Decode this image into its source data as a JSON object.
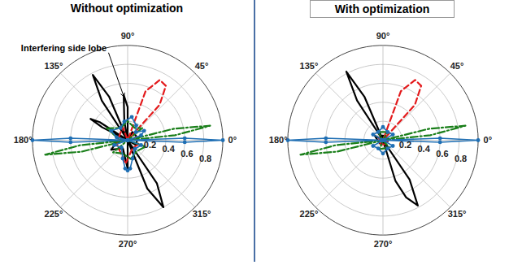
{
  "chart_data": [
    {
      "type": "polar",
      "title": "Without optimization",
      "rlim": [
        0,
        1
      ],
      "rticks": [
        0.2,
        0.4,
        0.6,
        0.8
      ],
      "thetaticks": [
        {
          "value": 0,
          "label": "0°"
        },
        {
          "value": 45,
          "label": "45°"
        },
        {
          "value": 90,
          "label": "90°"
        },
        {
          "value": 135,
          "label": "135°"
        },
        {
          "value": 180,
          "label": "180°"
        },
        {
          "value": 225,
          "label": "225°"
        },
        {
          "value": 270,
          "label": "270°"
        },
        {
          "value": 315,
          "label": "315°"
        }
      ],
      "grid": true,
      "annotations": [
        {
          "text": "Interfering side lobe"
        }
      ],
      "series": [
        {
          "color": "#000000",
          "line_style": "solid",
          "marker": "none",
          "theta": [
            0,
            30,
            60,
            80,
            90,
            95,
            100,
            108,
            113,
            118,
            123,
            128,
            140,
            147,
            150,
            153,
            160,
            180,
            210,
            240,
            270,
            285,
            292,
            298,
            304,
            311,
            330,
            360
          ],
          "r": [
            0.1,
            0.1,
            0.1,
            0,
            0.35,
            0.48,
            0.2,
            0,
            0.5,
            0.78,
            0.5,
            0,
            0,
            0.35,
            0.45,
            0.3,
            0,
            0.1,
            0.2,
            0.1,
            0.3,
            0,
            0.55,
            0.8,
            0.55,
            0,
            0.1,
            0.1
          ]
        },
        {
          "color": "#e31a1c",
          "line_style": "dashed",
          "marker": "none",
          "theta": [
            0,
            20,
            40,
            48,
            55,
            62,
            70,
            80,
            110,
            150,
            200,
            240,
            265,
            300,
            340,
            360
          ],
          "r": [
            0.1,
            0.1,
            0,
            0.5,
            0.7,
            0.72,
            0.55,
            0,
            0.15,
            0.1,
            0.12,
            0.15,
            0.25,
            0.1,
            0.12,
            0.1
          ]
        },
        {
          "color": "#1a7f1a",
          "line_style": "dashdot",
          "marker": "none",
          "theta": [
            2,
            6,
            10,
            14,
            18,
            40,
            60,
            90,
            120,
            150,
            170,
            182,
            186,
            190,
            194,
            198,
            220,
            250,
            280,
            310,
            340,
            362
          ],
          "r": [
            0,
            0.5,
            0.88,
            0.5,
            0,
            0.2,
            0.15,
            0.2,
            0.15,
            0.25,
            0.1,
            0,
            0.5,
            0.88,
            0.5,
            0,
            0.2,
            0.15,
            0.2,
            0.15,
            0.2,
            0
          ]
        },
        {
          "color": "#1f6fb4",
          "line_style": "solid",
          "marker": "circle",
          "theta": [
            -4,
            -2,
            0,
            2,
            4,
            20,
            30,
            45,
            60,
            80,
            100,
            120,
            150,
            165,
            176,
            178,
            180,
            182,
            184,
            200,
            230,
            255,
            265,
            270,
            275,
            285,
            310,
            340,
            356
          ],
          "r": [
            0,
            0.6,
            1.0,
            0.6,
            0,
            0.15,
            0.2,
            0.12,
            0.18,
            0.25,
            0.2,
            0.15,
            0.2,
            0.12,
            0,
            0.6,
            1.0,
            0.6,
            0,
            0.15,
            0.1,
            0.2,
            0.3,
            0.32,
            0.3,
            0.2,
            0.12,
            0.15,
            0
          ]
        }
      ]
    },
    {
      "type": "polar",
      "title": "With optimization",
      "rlim": [
        0,
        1
      ],
      "rticks": [
        0.2,
        0.4,
        0.6,
        0.8
      ],
      "thetaticks": [
        {
          "value": 0,
          "label": "0°"
        },
        {
          "value": 45,
          "label": "45°"
        },
        {
          "value": 90,
          "label": "90°"
        },
        {
          "value": 135,
          "label": "135°"
        },
        {
          "value": 180,
          "label": "180°"
        },
        {
          "value": 225,
          "label": "225°"
        },
        {
          "value": 270,
          "label": "270°"
        },
        {
          "value": 315,
          "label": "315°"
        }
      ],
      "grid": true,
      "series": [
        {
          "color": "#000000",
          "line_style": "solid",
          "marker": "none",
          "theta": [
            0,
            60,
            100,
            108,
            113,
            118,
            123,
            128,
            150,
            200,
            250,
            280,
            287,
            292,
            298,
            304,
            310,
            340,
            360
          ],
          "r": [
            0.05,
            0.05,
            0.05,
            0,
            0.5,
            0.82,
            0.5,
            0,
            0.1,
            0.05,
            0.05,
            0,
            0.45,
            0.65,
            0.78,
            0.5,
            0,
            0.05,
            0.05
          ]
        },
        {
          "color": "#e31a1c",
          "line_style": "dashed",
          "marker": "none",
          "theta": [
            0,
            40,
            48,
            55,
            62,
            70,
            80,
            150,
            240,
            300,
            360
          ],
          "r": [
            0.05,
            0,
            0.5,
            0.7,
            0.72,
            0.55,
            0,
            0.05,
            0.05,
            0.05,
            0.05
          ]
        },
        {
          "color": "#1a7f1a",
          "line_style": "dashdot",
          "marker": "none",
          "theta": [
            2,
            6,
            10,
            14,
            18,
            60,
            120,
            182,
            186,
            190,
            194,
            198,
            250,
            310,
            362
          ],
          "r": [
            0,
            0.5,
            0.88,
            0.5,
            0,
            0.1,
            0.1,
            0,
            0.5,
            0.88,
            0.5,
            0,
            0.1,
            0.1,
            0
          ]
        },
        {
          "color": "#1f6fb4",
          "line_style": "solid",
          "marker": "circle",
          "theta": [
            -4,
            -2,
            0,
            2,
            4,
            30,
            60,
            90,
            120,
            150,
            176,
            178,
            180,
            182,
            184,
            210,
            240,
            270,
            300,
            330,
            356
          ],
          "r": [
            0,
            0.6,
            1.0,
            0.6,
            0,
            0.12,
            0.1,
            0.14,
            0.1,
            0.12,
            0,
            0.6,
            1.0,
            0.6,
            0,
            0.12,
            0.1,
            0.14,
            0.1,
            0.12,
            0
          ]
        }
      ]
    }
  ]
}
